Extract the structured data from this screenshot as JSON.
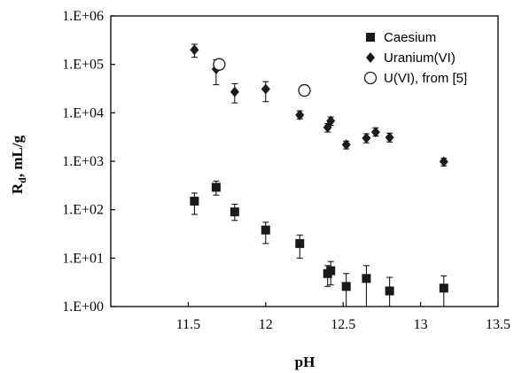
{
  "chart_data": {
    "type": "scatter",
    "xlabel": "pH",
    "ylabel_main": "R",
    "ylabel_sub": "d",
    "ylabel_rest": ", mL/g",
    "xlim": [
      11,
      13.5
    ],
    "ylim": [
      1,
      1000000
    ],
    "yscale": "log",
    "grid": false,
    "legend_position": "top-right",
    "x_ticks": [
      "11.5",
      "12",
      "12.5",
      "13",
      "13.5"
    ],
    "x_tick_values": [
      11.5,
      12,
      12.5,
      13,
      13.5
    ],
    "y_ticks": [
      "1.E+00",
      "1.E+01",
      "1.E+02",
      "1.E+03",
      "1.E+04",
      "1.E+05",
      "1.E+06"
    ],
    "y_tick_values": [
      1,
      10,
      100,
      1000,
      10000,
      100000,
      1000000
    ],
    "series": [
      {
        "name": "Caesium",
        "marker": "square",
        "color": "#1a1a1a",
        "points": [
          {
            "x": 11.54,
            "y": 150,
            "err_low": 80,
            "err_high": 220
          },
          {
            "x": 11.68,
            "y": 290,
            "err_low": 200,
            "err_high": 390
          },
          {
            "x": 11.8,
            "y": 90,
            "err_low": 60,
            "err_high": 130
          },
          {
            "x": 12.0,
            "y": 38,
            "err_low": 20,
            "err_high": 55
          },
          {
            "x": 12.22,
            "y": 20,
            "err_low": 10,
            "err_high": 30
          },
          {
            "x": 12.4,
            "y": 4.8,
            "err_low": 2.6,
            "err_high": 7
          },
          {
            "x": 12.42,
            "y": 5.5,
            "err_low": 2.8,
            "err_high": 8.5
          },
          {
            "x": 12.52,
            "y": 2.6,
            "err_low": 1,
            "err_high": 4.8
          },
          {
            "x": 12.65,
            "y": 3.8,
            "err_low": 1,
            "err_high": 7
          },
          {
            "x": 12.8,
            "y": 2.1,
            "err_low": 1,
            "err_high": 4
          },
          {
            "x": 13.15,
            "y": 2.4,
            "err_low": 1,
            "err_high": 4.3
          }
        ]
      },
      {
        "name": "Uranium(VI)",
        "marker": "diamond",
        "color": "#1a1a1a",
        "points": [
          {
            "x": 11.54,
            "y": 200000,
            "err_low": 140000,
            "err_high": 260000
          },
          {
            "x": 11.68,
            "y": 80000,
            "err_low": 38000,
            "err_high": 125000
          },
          {
            "x": 11.8,
            "y": 27000,
            "err_low": 16000,
            "err_high": 40000
          },
          {
            "x": 12.0,
            "y": 31000,
            "err_low": 17000,
            "err_high": 44000
          },
          {
            "x": 12.22,
            "y": 9000,
            "err_low": 7500,
            "err_high": 11000
          },
          {
            "x": 12.4,
            "y": 5000,
            "err_low": 4000,
            "err_high": 6000
          },
          {
            "x": 12.42,
            "y": 6800,
            "err_low": 5500,
            "err_high": 8200
          },
          {
            "x": 12.52,
            "y": 2200,
            "err_low": 1800,
            "err_high": 2600
          },
          {
            "x": 12.65,
            "y": 3000,
            "err_low": 2400,
            "err_high": 3700
          },
          {
            "x": 12.71,
            "y": 4000,
            "err_low": 3300,
            "err_high": 4900
          },
          {
            "x": 12.8,
            "y": 3100,
            "err_low": 2500,
            "err_high": 3800
          },
          {
            "x": 13.15,
            "y": 980,
            "err_low": 800,
            "err_high": 1150
          }
        ]
      },
      {
        "name": "U(VI), from [5]",
        "marker": "circle-open",
        "color": "#1a1a1a",
        "points": [
          {
            "x": 11.7,
            "y": 100000
          },
          {
            "x": 12.25,
            "y": 29000
          }
        ]
      }
    ]
  }
}
